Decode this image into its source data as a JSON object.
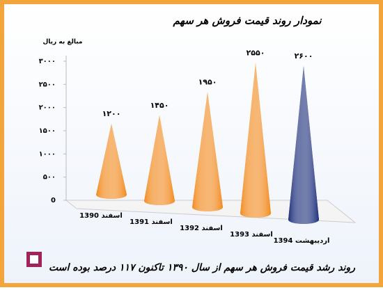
{
  "chart_data": {
    "type": "cone",
    "title": "نمودار روند قیمت فروش هر سهم",
    "y_label": "مبالغ به ریال",
    "categories": [
      "اسفند 1390",
      "اسفند 1391",
      "اسفند 1392",
      "اسفند 1393",
      "اردیبهشت 1394"
    ],
    "values": [
      1200,
      1450,
      1950,
      2550,
      2600
    ],
    "value_labels": [
      "۱۲۰۰",
      "۱۴۵۰",
      "۱۹۵۰",
      "۲۵۵۰",
      "۲۶۰۰"
    ],
    "colors": [
      "#f28a1e",
      "#f28a1e",
      "#f28a1e",
      "#f28a1e",
      "#1c2f7a"
    ],
    "ylim": [
      0,
      3000
    ],
    "yticks": [
      0,
      {
        "value": 500,
        "label": "۵۰۰"
      },
      {
        "value": 1000,
        "label": "۱۰۰۰"
      },
      {
        "value": 1500,
        "label": "۱۵۰۰"
      },
      {
        "value": 2000,
        "label": "۲۰۰۰"
      },
      {
        "value": 2500,
        "label": "۲۵۰۰"
      },
      {
        "value": 3000,
        "label": "۳۰۰۰"
      }
    ],
    "footer": "روند رشد قیمت فروش هر سهم از سال ۱۳۹۰ تاکنون ۱۱۷ درصد بوده است"
  }
}
